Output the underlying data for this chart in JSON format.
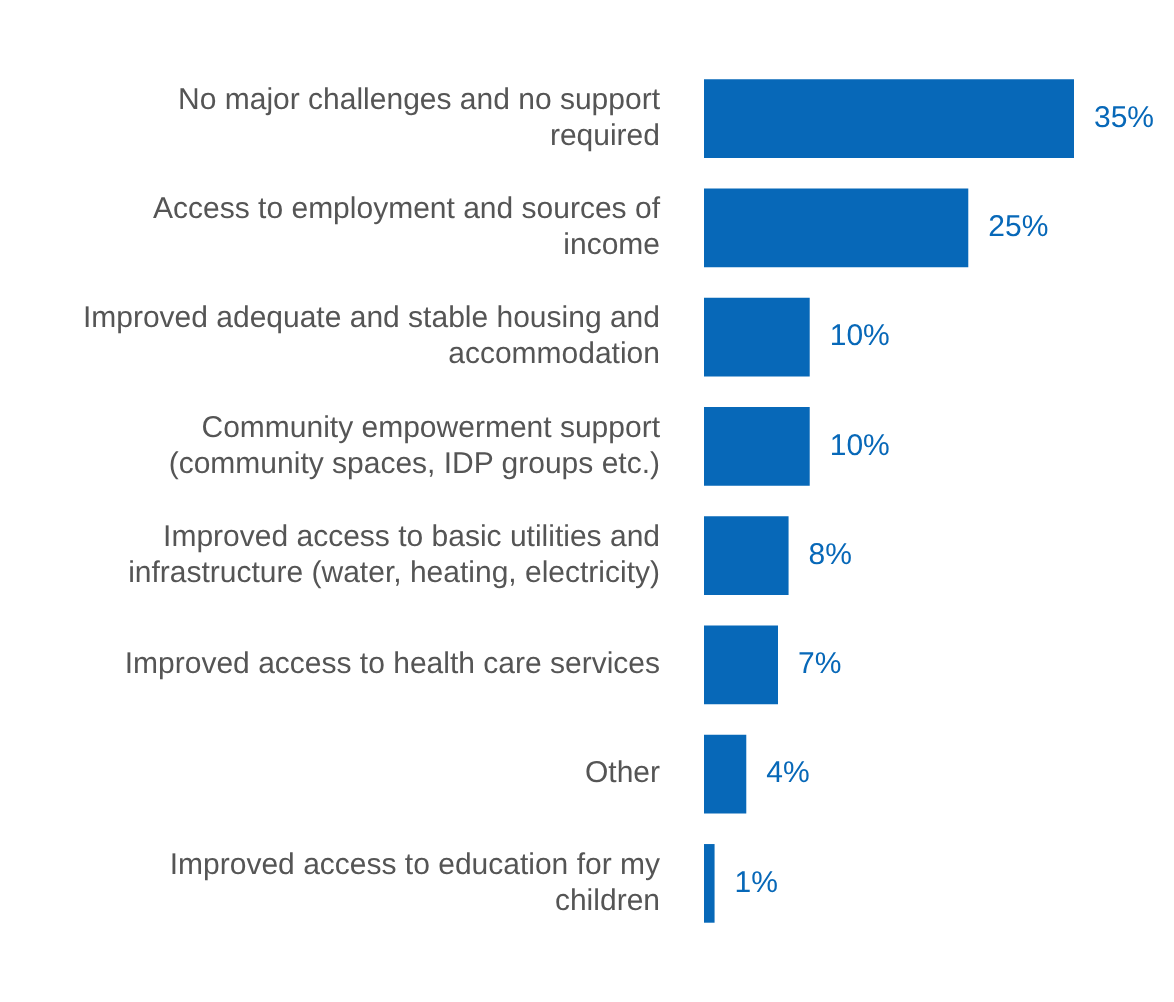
{
  "chart_data": {
    "type": "bar",
    "orientation": "horizontal",
    "categories": [
      "No major challenges and no support required",
      "Access to employment and sources of income",
      "Improved adequate and stable housing and accommodation",
      "Community empowerment support (community spaces, IDP groups etc.)",
      "Improved access to basic utilities and infrastructure (water, heating, electricity)",
      "Improved access to health care services",
      "Other",
      "Improved access to education for my children"
    ],
    "values": [
      35,
      25,
      10,
      10,
      8,
      7,
      4,
      1
    ],
    "value_labels": [
      "35%",
      "25%",
      "10%",
      "10%",
      "8%",
      "7%",
      "4%",
      "1%"
    ],
    "color": "#0768b8",
    "tick_labels": "y"
  }
}
